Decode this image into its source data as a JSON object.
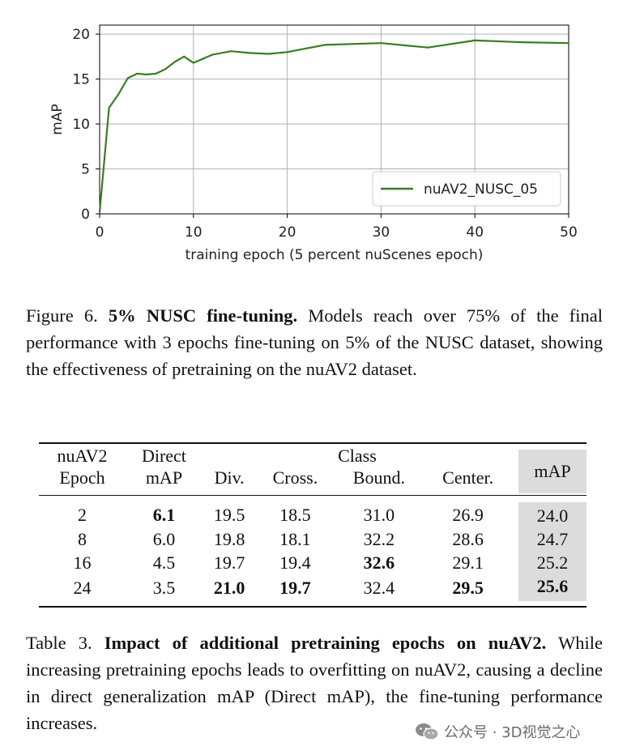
{
  "chart_data": {
    "type": "line",
    "title": "",
    "xlabel": "training epoch (5 percent nuScenes epoch)",
    "ylabel": "mAP",
    "xlim": [
      0,
      50
    ],
    "ylim": [
      0,
      21
    ],
    "xticks": [
      0,
      10,
      20,
      30,
      40,
      50
    ],
    "yticks": [
      0,
      5,
      10,
      15,
      20
    ],
    "grid": true,
    "legend_position": "lower-right",
    "series": [
      {
        "name": "nuAV2_NUSC_05",
        "color": "#3a7d22",
        "x": [
          0,
          1,
          2,
          3,
          4,
          5,
          6,
          7,
          8,
          9,
          10,
          12,
          14,
          16,
          18,
          20,
          24,
          30,
          35,
          40,
          45,
          50
        ],
        "y": [
          0.2,
          11.8,
          13.3,
          15.1,
          15.6,
          15.5,
          15.6,
          16.1,
          16.9,
          17.5,
          16.8,
          17.7,
          18.1,
          17.9,
          17.8,
          18.0,
          18.8,
          19.0,
          18.5,
          19.3,
          19.1,
          19.0
        ]
      }
    ]
  },
  "figure_caption": {
    "label": "Figure 6.",
    "title": "5% NUSC fine-tuning.",
    "text": "Models reach over 75% of the final performance with 3 epochs fine-tuning on 5% of the NUSC dataset, showing the effectiveness of pretraining on the nuAV2 dataset."
  },
  "table": {
    "headers": {
      "epoch_line1": "nuAV2",
      "epoch_line2": "Epoch",
      "direct_line1": "Direct",
      "direct_line2": "mAP",
      "class_group": "Class",
      "div": "Div.",
      "cross": "Cross.",
      "bound": "Bound.",
      "center": "Center.",
      "map": "mAP"
    },
    "rows": [
      {
        "epoch": "2",
        "direct": "6.1",
        "div": "19.5",
        "cross": "18.5",
        "bound": "31.0",
        "center": "26.9",
        "map": "24.0"
      },
      {
        "epoch": "8",
        "direct": "6.0",
        "div": "19.8",
        "cross": "18.1",
        "bound": "32.2",
        "center": "28.6",
        "map": "24.7"
      },
      {
        "epoch": "16",
        "direct": "4.5",
        "div": "19.7",
        "cross": "19.4",
        "bound": "32.6",
        "center": "29.1",
        "map": "25.2"
      },
      {
        "epoch": "24",
        "direct": "3.5",
        "div": "21.0",
        "cross": "19.7",
        "bound": "32.4",
        "center": "29.5",
        "map": "25.6"
      }
    ]
  },
  "table_caption": {
    "label": "Table 3.",
    "title": "Impact of additional pretraining epochs on nuAV2.",
    "text": "While increasing pretraining epochs leads to overfitting on nuAV2, causing a decline in direct generalization mAP (Direct mAP), the fine-tuning performance increases."
  },
  "watermark": {
    "text": "公众号 · 3D视觉之心"
  }
}
